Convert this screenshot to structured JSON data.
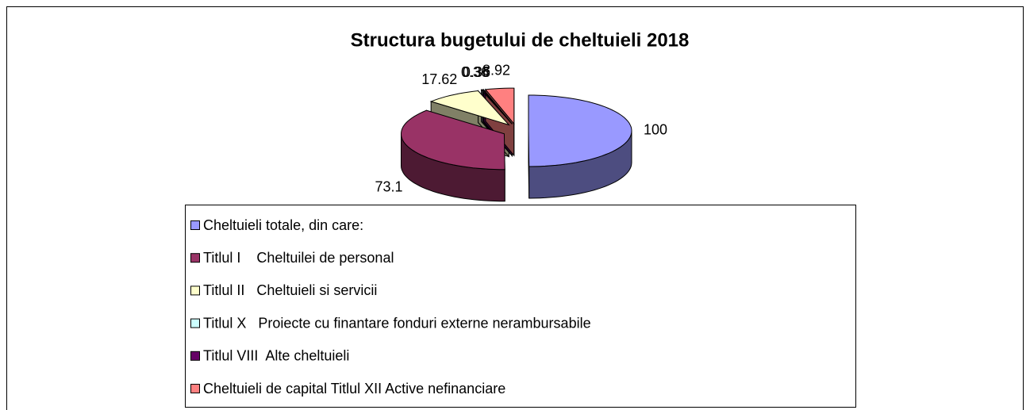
{
  "chart_data": {
    "type": "pie3d",
    "title": "Structura bugetului de cheltuieli 2018",
    "categories": [
      "Cheltuieli totale, din care:",
      "Titlul I    Cheltuilei de personal",
      "Titlul II   Cheltuieli si servicii",
      "Titlul X   Proiecte cu finantare fonduri externe nerambursabile",
      "Titlul VIII  Alte cheltuieli",
      "Cheltuieli de capital Titlul XII Active nefinanciare"
    ],
    "values": [
      100,
      73.1,
      17.62,
      0.36,
      0.36,
      8.92
    ],
    "colors": [
      "#9999ff",
      "#993366",
      "#ffffcc",
      "#ccffff",
      "#660066",
      "#ff8080"
    ],
    "legend": "bottom"
  }
}
